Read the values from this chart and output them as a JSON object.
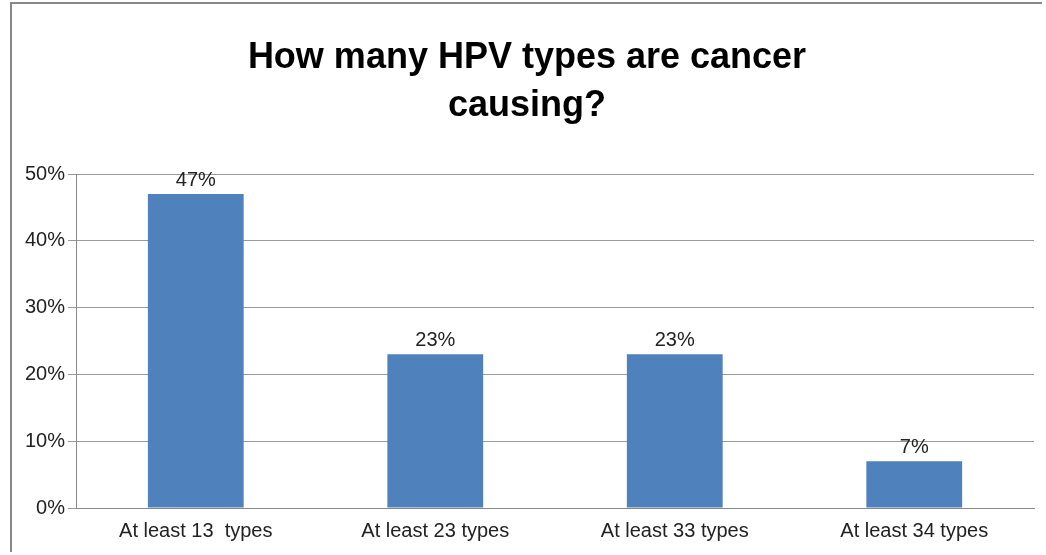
{
  "chart_data": {
    "type": "bar",
    "title": "How many HPV types are cancer causing?",
    "categories": [
      "At least 13  types",
      "At least 23 types",
      "At least 33 types",
      "At least 34 types"
    ],
    "values": [
      47,
      23,
      23,
      7
    ],
    "color": "#4f81bd",
    "value_labels": [
      "47%",
      "23%",
      "23%",
      "7%"
    ],
    "ylim": [
      0,
      50
    ],
    "yticks": [
      {
        "value": 0,
        "label": "0%"
      },
      {
        "value": 10,
        "label": "10%"
      },
      {
        "value": 20,
        "label": "20%"
      },
      {
        "value": 30,
        "label": "30%"
      },
      {
        "value": 40,
        "label": "40%"
      },
      {
        "value": 50,
        "label": "50%"
      }
    ],
    "grid": "y",
    "legend": false
  }
}
